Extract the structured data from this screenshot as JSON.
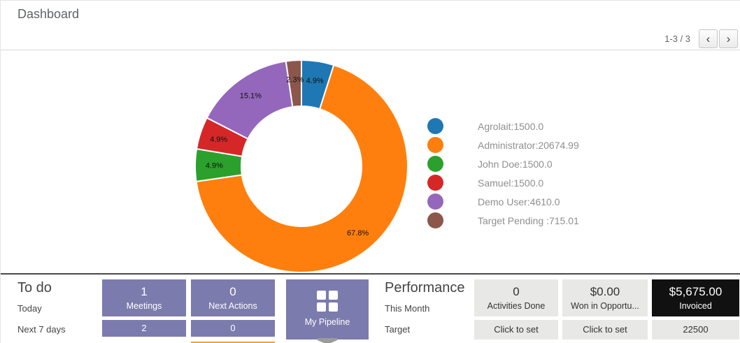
{
  "header": {
    "title": "Dashboard",
    "pager": {
      "range_text": "1-3 / 3",
      "prev_icon": "‹",
      "next_icon": "›"
    }
  },
  "chart_data": {
    "type": "pie",
    "donut": true,
    "title": "",
    "legend_position": "right",
    "slices": [
      {
        "label": "Agrolait",
        "value": 1500.0,
        "percent_label": "4.9%",
        "color": "#1f77b4",
        "legend_text": "Agrolait:1500.0"
      },
      {
        "label": "Administrator",
        "value": 20674.99,
        "percent_label": "67.8%",
        "color": "#ff7f0e",
        "legend_text": "Administrator:20674.99"
      },
      {
        "label": "John Doe",
        "value": 1500.0,
        "percent_label": "4.9%",
        "color": "#2ca02c",
        "legend_text": "John Doe:1500.0"
      },
      {
        "label": "Samuel",
        "value": 1500.0,
        "percent_label": "4.9%",
        "color": "#d62728",
        "legend_text": "Samuel:1500.0"
      },
      {
        "label": "Demo User",
        "value": 4610.0,
        "percent_label": "15.1%",
        "color": "#9467bd",
        "legend_text": "Demo User:4610.0"
      },
      {
        "label": "Target Pending",
        "value": 715.01,
        "percent_label": "2.3%",
        "color": "#8c564b",
        "legend_text": "Target Pending :715.01"
      }
    ]
  },
  "todo": {
    "title": "To do",
    "row1_label": "Today",
    "row2_label": "Next 7 days",
    "tiles": [
      {
        "value": "1",
        "label": "Meetings",
        "next7": "2"
      },
      {
        "value": "0",
        "label": "Next Actions",
        "next7": "0"
      }
    ],
    "pipeline_label": "My Pipeline"
  },
  "performance": {
    "title": "Performance",
    "row1_label": "This Month",
    "row2_label": "Target",
    "tiles": [
      {
        "value": "0",
        "label": "Activities Done",
        "target": "Click to set"
      },
      {
        "value": "$0.00",
        "label": "Won in Opportu...",
        "target": "Click to set"
      },
      {
        "value": "$5,675.00",
        "label": "Invoiced",
        "target": "22500"
      }
    ]
  },
  "colors": {
    "tile_purple": "#7c7bad",
    "tile_gray": "#e8e8e6",
    "tile_dark": "#111111",
    "accent_orange": "#f0a136"
  }
}
